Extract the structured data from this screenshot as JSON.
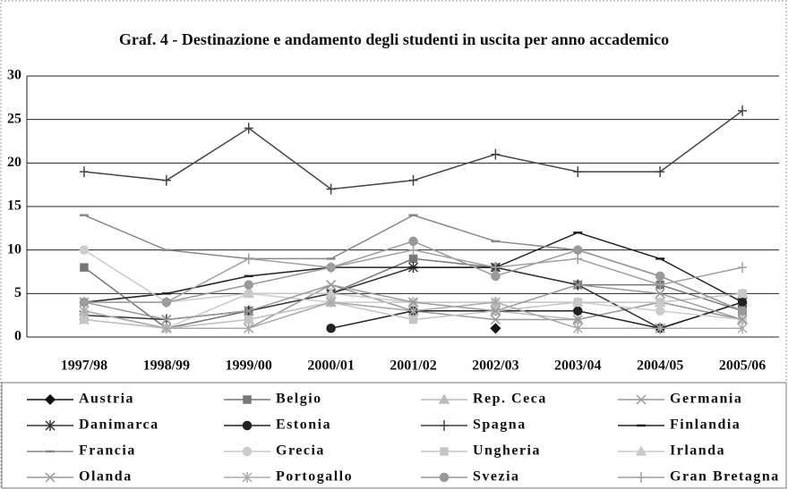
{
  "chart_data": {
    "type": "line",
    "title": "Graf. 4 - Destinazione e andamento degli studenti in uscita per anno accademico",
    "categories": [
      "1997/98",
      "1998/99",
      "1999/00",
      "2000/01",
      "2001/02",
      "2002/03",
      "2003/04",
      "2004/05",
      "2005/06"
    ],
    "ylim": [
      0,
      30
    ],
    "yticks": [
      0,
      5,
      10,
      15,
      20,
      25,
      30
    ],
    "grid": true,
    "series": [
      {
        "name": "Austria",
        "color": "#111111",
        "marker": "diamond",
        "values": [
          null,
          null,
          null,
          null,
          null,
          1,
          null,
          null,
          null
        ]
      },
      {
        "name": "Belgio",
        "color": "#777777",
        "marker": "square",
        "values": [
          8,
          1,
          3,
          5,
          9,
          8,
          6,
          6,
          3
        ]
      },
      {
        "name": "Rep. Ceca",
        "color": "#bbbbbb",
        "marker": "triangle",
        "values": [
          3,
          1,
          2,
          4,
          3,
          3,
          2,
          4,
          2
        ]
      },
      {
        "name": "Germania",
        "color": "#999999",
        "marker": "x",
        "values": [
          2,
          1,
          1,
          6,
          3,
          2,
          2,
          4,
          2
        ]
      },
      {
        "name": "Danimarca",
        "color": "#333333",
        "marker": "star",
        "values": [
          2.5,
          2,
          3,
          5,
          8,
          8,
          6,
          1,
          4
        ]
      },
      {
        "name": "Estonia",
        "color": "#222222",
        "marker": "circle",
        "values": [
          null,
          null,
          null,
          1,
          3,
          3,
          3,
          1,
          4
        ]
      },
      {
        "name": "Spagna",
        "color": "#444444",
        "marker": "plus",
        "values": [
          19,
          18,
          24,
          17,
          18,
          21,
          19,
          19,
          26
        ]
      },
      {
        "name": "Finlandia",
        "color": "#222222",
        "marker": "dash",
        "values": [
          4,
          5,
          7,
          8,
          8,
          8,
          12,
          9,
          4
        ]
      },
      {
        "name": "Francia",
        "color": "#888888",
        "marker": "dash",
        "values": [
          14,
          10,
          9,
          9,
          14,
          11,
          10,
          7,
          3
        ]
      },
      {
        "name": "Grecia",
        "color": "#cccccc",
        "marker": "circle",
        "values": [
          10,
          4,
          5,
          4,
          4,
          4,
          4,
          3,
          2
        ]
      },
      {
        "name": "Ungheria",
        "color": "#c4c4c4",
        "marker": "square",
        "values": [
          2,
          1,
          2,
          4,
          2,
          3,
          4,
          4,
          5
        ]
      },
      {
        "name": "Irlanda",
        "color": "#c8c8c8",
        "marker": "triangle",
        "values": [
          3,
          1,
          5,
          5,
          4,
          4,
          4,
          4,
          5
        ]
      },
      {
        "name": "Olanda",
        "color": "#999999",
        "marker": "x",
        "values": [
          4,
          2,
          3,
          6,
          4,
          3,
          6,
          5,
          2
        ]
      },
      {
        "name": "Portogallo",
        "color": "#aaaaaa",
        "marker": "star",
        "values": [
          3,
          1,
          1,
          4,
          3,
          4,
          1,
          1,
          1
        ]
      },
      {
        "name": "Svezia",
        "color": "#999999",
        "marker": "circle",
        "values": [
          4,
          4,
          6,
          8,
          11,
          7,
          10,
          7,
          3
        ]
      },
      {
        "name": "Gran Bretagna",
        "color": "#a0a0a0",
        "marker": "plus",
        "values": [
          4,
          4,
          9,
          8,
          10,
          8,
          9,
          6,
          8
        ]
      }
    ]
  }
}
